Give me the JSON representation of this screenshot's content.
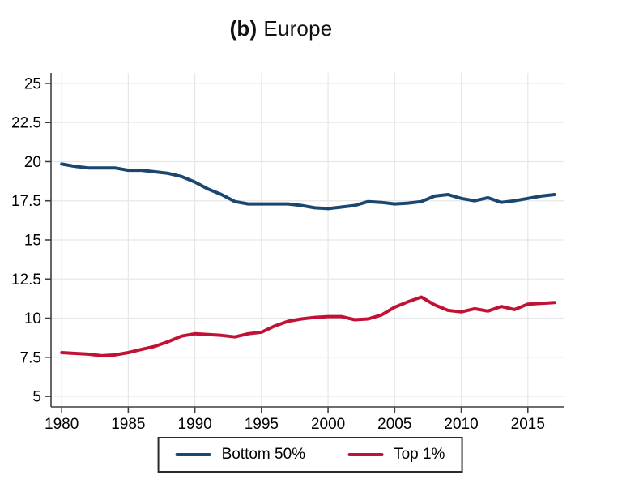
{
  "title": {
    "prefix": "(b)",
    "text": "Europe"
  },
  "colors": {
    "navy": "#1a476f",
    "crimson": "#c11236",
    "grid": "#e7e7e7",
    "axis": "#3f3f3f",
    "text": "#000000",
    "background": "#ffffff"
  },
  "chart_data": {
    "type": "line",
    "title": "(b) Europe",
    "xlabel": "",
    "ylabel": "",
    "grid": true,
    "legend_position": "bottom",
    "xlim": [
      1979.2,
      2017.75
    ],
    "ylim": [
      4.33,
      25.67
    ],
    "x_ticks": [
      1980,
      1985,
      1990,
      1995,
      2000,
      2005,
      2010,
      2015
    ],
    "y_ticks": [
      5,
      7.5,
      10,
      12.5,
      15,
      17.5,
      20,
      22.5,
      25
    ],
    "y_tick_labels": [
      "5",
      "7.5",
      "10",
      "12.5",
      "15",
      "17.5",
      "20",
      "22.5",
      "25"
    ],
    "x": [
      1980,
      1981,
      1982,
      1983,
      1984,
      1985,
      1986,
      1987,
      1988,
      1989,
      1990,
      1991,
      1992,
      1993,
      1994,
      1995,
      1996,
      1997,
      1998,
      1999,
      2000,
      2001,
      2002,
      2003,
      2004,
      2005,
      2006,
      2007,
      2008,
      2009,
      2010,
      2011,
      2012,
      2013,
      2014,
      2015,
      2016,
      2017
    ],
    "series": [
      {
        "name": "Bottom 50%",
        "color": "#1a476f",
        "values": [
          19.85,
          19.7,
          19.6,
          19.6,
          19.6,
          19.45,
          19.45,
          19.35,
          19.25,
          19.05,
          18.7,
          18.25,
          17.9,
          17.45,
          17.3,
          17.3,
          17.3,
          17.3,
          17.2,
          17.05,
          17.0,
          17.1,
          17.2,
          17.45,
          17.4,
          17.3,
          17.35,
          17.45,
          17.8,
          17.9,
          17.65,
          17.5,
          17.7,
          17.4,
          17.5,
          17.65,
          17.8,
          17.9
        ]
      },
      {
        "name": "Top 1%",
        "color": "#c11236",
        "values": [
          7.8,
          7.75,
          7.7,
          7.6,
          7.65,
          7.8,
          8.0,
          8.2,
          8.5,
          8.85,
          9.0,
          8.95,
          8.9,
          8.8,
          9.0,
          9.1,
          9.5,
          9.8,
          9.95,
          10.05,
          10.1,
          10.1,
          9.9,
          9.95,
          10.2,
          10.7,
          11.05,
          11.35,
          10.85,
          10.5,
          10.4,
          10.6,
          10.45,
          10.75,
          10.55,
          10.9,
          10.95,
          11.0
        ]
      }
    ]
  },
  "legend": {
    "items": [
      {
        "label": "Bottom 50%",
        "color": "#1a476f"
      },
      {
        "label": "Top 1%",
        "color": "#c11236"
      }
    ]
  }
}
